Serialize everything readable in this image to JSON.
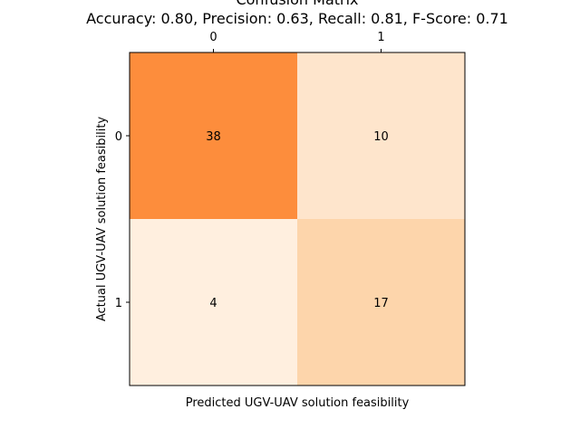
{
  "chart_data": {
    "type": "heatmap",
    "title": "Confusion Matrix",
    "subtitle": "Accuracy: 0.80, Precision: 0.63, Recall: 0.81, F-Score: 0.71",
    "xlabel": "Predicted UGV-UAV solution feasibility",
    "ylabel": "Actual UGV-UAV solution feasibility",
    "x_categories": [
      "0",
      "1"
    ],
    "y_categories": [
      "0",
      "1"
    ],
    "values": [
      [
        38,
        10
      ],
      [
        4,
        17
      ]
    ],
    "x_tick_position": "top",
    "grid": false,
    "colormap": "Oranges",
    "color_range": [
      0,
      38
    ],
    "colors": {
      "low": "#fff5eb",
      "mid": "#fdae6b",
      "high": "#7f2704"
    }
  }
}
